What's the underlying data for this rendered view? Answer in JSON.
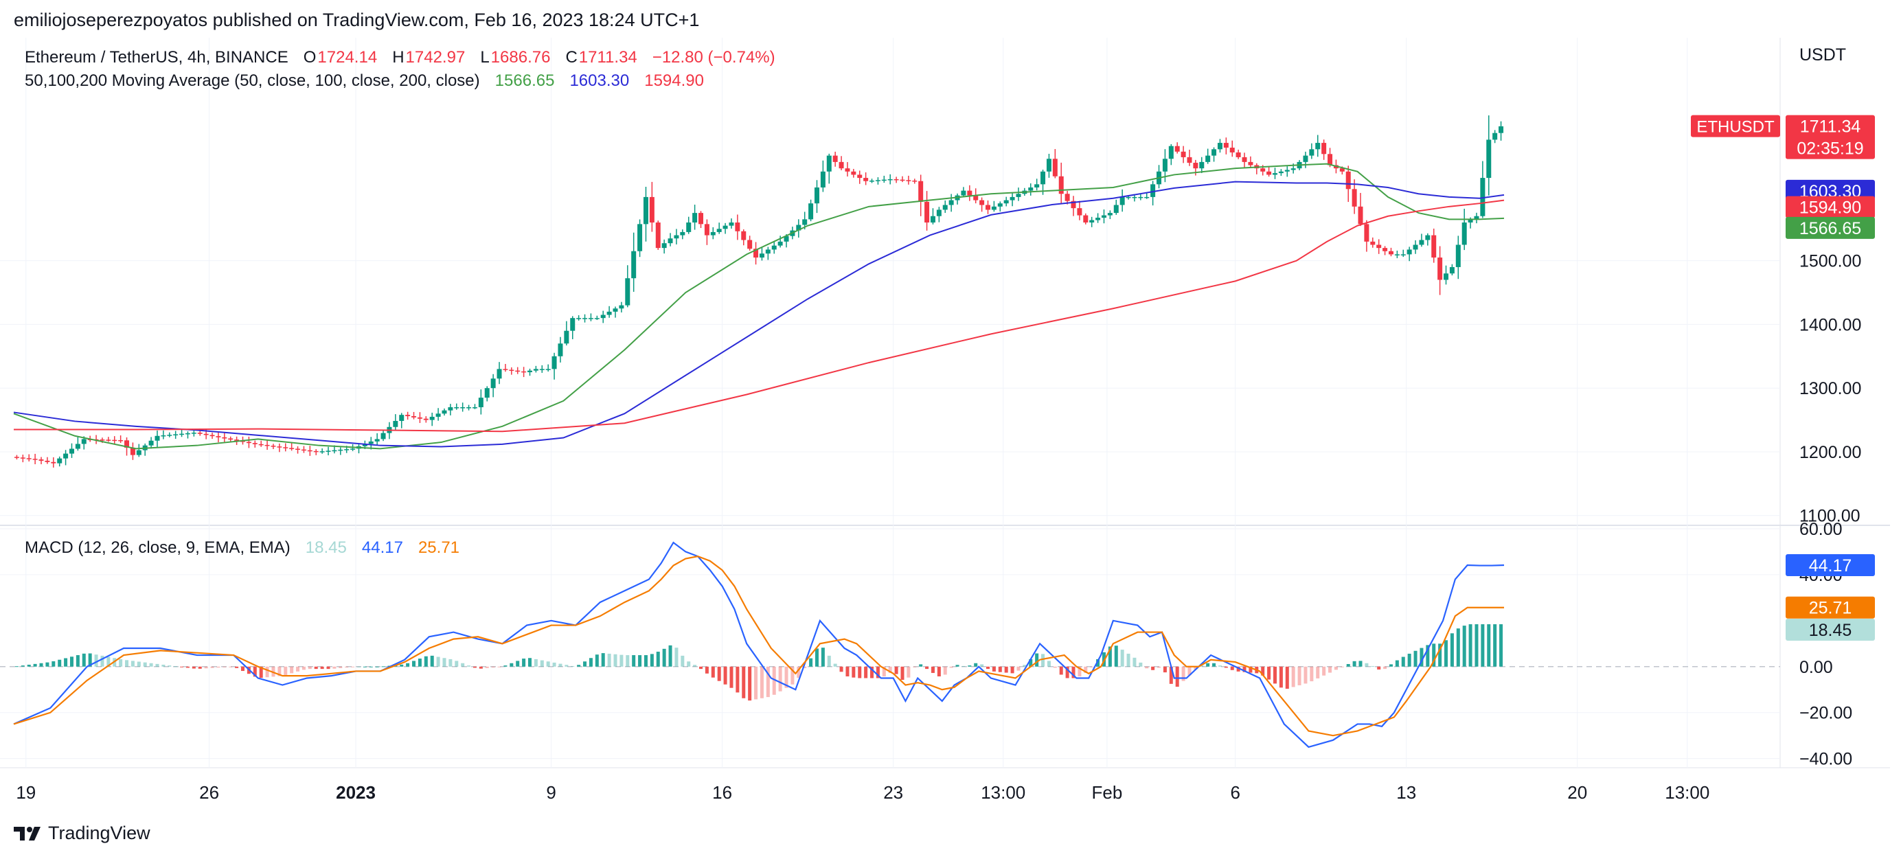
{
  "header": {
    "publisher": "emiliojoseperezpoyatos published on TradingView.com, Feb 16, 2023 18:24 UTC+1"
  },
  "watermark": {
    "label": "TradingView",
    "icon": "tradingview-logo-icon"
  },
  "colors": {
    "up": "#089981",
    "down": "#f23645",
    "ma50": "#43a047",
    "ma100": "#2b2bd6",
    "ma200": "#f23645",
    "macd": "#2962ff",
    "signal": "#f57c00",
    "hist_up": "#26a69a",
    "hist_down": "#ef5350"
  },
  "legend": {
    "symbol": "Ethereum / TetherUS, 4h, BINANCE",
    "o_label": "O",
    "o": "1724.14",
    "h_label": "H",
    "h": "1742.97",
    "l_label": "L",
    "l": "1686.76",
    "c_label": "C",
    "c": "1711.34",
    "change": "−12.80 (−0.74%)",
    "ma_title": "50,100,200 Moving Average (50, close, 100, close, 200, close)",
    "ma50": "1566.65",
    "ma100": "1603.30",
    "ma200": "1594.90",
    "macd_title": "MACD (12, 26, close, 9, EMA, EMA)",
    "hist": "18.45",
    "macd": "44.17",
    "signal": "25.71"
  },
  "chart_data": {
    "type": "line",
    "price_axis": {
      "label": "USDT",
      "ylim": [
        1090,
        1850
      ],
      "ticks": [
        "1100.00",
        "1200.00",
        "1300.00",
        "1400.00",
        "1500.00"
      ]
    },
    "macd_axis": {
      "ylim": [
        -44,
        60
      ],
      "ticks": [
        "60.00",
        "40.00",
        "0.00",
        "−20.00",
        "−40.00"
      ]
    },
    "x_axis": {
      "range": [
        0,
        244
      ],
      "ticks": [
        {
          "x": 2,
          "label": "19",
          "bold": false
        },
        {
          "x": 32,
          "label": "26",
          "bold": false
        },
        {
          "x": 56,
          "label": "2023",
          "bold": true
        },
        {
          "x": 88,
          "label": "9",
          "bold": false
        },
        {
          "x": 116,
          "label": "16",
          "bold": false
        },
        {
          "x": 144,
          "label": "23",
          "bold": false
        },
        {
          "x": 162,
          "label": "13:00",
          "bold": false
        },
        {
          "x": 179,
          "label": "Feb",
          "bold": false
        },
        {
          "x": 200,
          "label": "6",
          "bold": false
        },
        {
          "x": 228,
          "label": "13",
          "bold": false
        },
        {
          "x": 256,
          "label": "20",
          "bold": false
        },
        {
          "x": 274,
          "label": "13:00",
          "bold": false
        }
      ]
    },
    "price_series": {
      "name": "ETHUSDT",
      "x": [
        0,
        4,
        7,
        12,
        18,
        20,
        24,
        30,
        40,
        50,
        56,
        60,
        64,
        68,
        72,
        76,
        80,
        84,
        86,
        88,
        92,
        96,
        98,
        100,
        104,
        106,
        108,
        110,
        112,
        114,
        118,
        122,
        126,
        130,
        134,
        136,
        140,
        144,
        148,
        150,
        152,
        156,
        160,
        164,
        168,
        170,
        172,
        176,
        180,
        182,
        186,
        190,
        194,
        198,
        202,
        206,
        210,
        214,
        216,
        218,
        222,
        226,
        228,
        230,
        232,
        234,
        236,
        238,
        240,
        242,
        244
      ],
      "y": [
        1192,
        1188,
        1182,
        1220,
        1218,
        1195,
        1225,
        1230,
        1212,
        1200,
        1205,
        1220,
        1258,
        1250,
        1270,
        1270,
        1330,
        1325,
        1330,
        1330,
        1410,
        1410,
        1420,
        1430,
        1600,
        1520,
        1535,
        1545,
        1575,
        1540,
        1560,
        1505,
        1530,
        1565,
        1665,
        1645,
        1625,
        1628,
        1625,
        1560,
        1580,
        1610,
        1580,
        1600,
        1620,
        1660,
        1605,
        1560,
        1575,
        1600,
        1600,
        1680,
        1645,
        1685,
        1655,
        1635,
        1645,
        1685,
        1650,
        1640,
        1530,
        1510,
        1510,
        1525,
        1540,
        1470,
        1490,
        1560,
        1570,
        1690,
        1711
      ]
    },
    "last_price": {
      "label": "ETHUSDT",
      "value": "1711.34",
      "countdown": "02:35:19"
    },
    "moving_averages": [
      {
        "name": "MA 50",
        "value": "1566.65",
        "x": [
          0,
          10,
          20,
          30,
          40,
          50,
          60,
          70,
          80,
          90,
          100,
          110,
          120,
          130,
          140,
          150,
          160,
          170,
          180,
          190,
          200,
          210,
          215,
          220,
          225,
          230,
          235,
          240,
          244
        ],
        "y": [
          1260,
          1225,
          1205,
          1210,
          1220,
          1210,
          1205,
          1215,
          1240,
          1280,
          1360,
          1450,
          1510,
          1555,
          1585,
          1595,
          1605,
          1610,
          1615,
          1635,
          1645,
          1650,
          1652,
          1640,
          1600,
          1575,
          1565,
          1565,
          1566.65
        ]
      },
      {
        "name": "MA 100",
        "value": "1603.30",
        "x": [
          0,
          10,
          20,
          30,
          40,
          50,
          60,
          70,
          80,
          90,
          100,
          110,
          120,
          130,
          140,
          150,
          160,
          170,
          180,
          190,
          200,
          210,
          215,
          220,
          225,
          230,
          235,
          240,
          244
        ],
        "y": [
          1262,
          1248,
          1240,
          1234,
          1226,
          1218,
          1210,
          1208,
          1212,
          1222,
          1260,
          1320,
          1380,
          1440,
          1495,
          1540,
          1572,
          1588,
          1598,
          1614,
          1624,
          1622,
          1622,
          1620,
          1615,
          1605,
          1600,
          1598,
          1603.3
        ]
      },
      {
        "name": "MA 200",
        "value": "1594.90",
        "x": [
          0,
          20,
          40,
          60,
          80,
          100,
          120,
          140,
          160,
          180,
          200,
          210,
          215,
          220,
          225,
          230,
          235,
          240,
          244
        ],
        "y": [
          1235,
          1235,
          1236,
          1234,
          1232,
          1245,
          1290,
          1340,
          1385,
          1425,
          1468,
          1500,
          1530,
          1555,
          1570,
          1578,
          1585,
          1590,
          1594.9
        ]
      }
    ],
    "macd": {
      "x": [
        0,
        6,
        12,
        18,
        24,
        30,
        36,
        40,
        44,
        48,
        52,
        56,
        60,
        64,
        68,
        72,
        76,
        80,
        84,
        88,
        92,
        96,
        100,
        104,
        106,
        108,
        110,
        112,
        114,
        116,
        118,
        120,
        124,
        128,
        132,
        136,
        138,
        140,
        142,
        144,
        146,
        148,
        150,
        152,
        154,
        156,
        158,
        160,
        164,
        168,
        172,
        174,
        176,
        178,
        180,
        184,
        186,
        188,
        190,
        192,
        194,
        196,
        200,
        204,
        208,
        212,
        216,
        220,
        222,
        224,
        226,
        228,
        232,
        234,
        236,
        238,
        240,
        242,
        244
      ],
      "macd_line": [
        -25,
        -18,
        0,
        8,
        8,
        5,
        5,
        -5,
        -8,
        -5,
        -4,
        -2,
        -2,
        3,
        13,
        15,
        12,
        10,
        18,
        20,
        18,
        28,
        33,
        38,
        45,
        54,
        50,
        48,
        42,
        35,
        25,
        10,
        -5,
        -10,
        20,
        8,
        5,
        0,
        -5,
        -5,
        -15,
        -5,
        -10,
        -15,
        -8,
        -5,
        0,
        -5,
        -8,
        10,
        0,
        -5,
        -5,
        5,
        20,
        18,
        13,
        15,
        -5,
        -5,
        0,
        5,
        0,
        -5,
        -25,
        -35,
        -32,
        -25,
        -25,
        -26,
        -20,
        -10,
        10,
        20,
        38,
        44.17,
        44,
        44,
        44.17
      ],
      "signal_line": [
        -25,
        -20,
        -6,
        5,
        7,
        6,
        5,
        0,
        -4,
        -4,
        -3,
        -2,
        -2,
        2,
        8,
        12,
        13,
        10,
        14,
        18,
        18,
        22,
        28,
        33,
        38,
        44,
        47,
        48,
        46,
        42,
        35,
        25,
        8,
        -3,
        10,
        12,
        10,
        5,
        0,
        -3,
        -8,
        -7,
        -8,
        -10,
        -9,
        -5,
        -2,
        -3,
        -5,
        3,
        5,
        0,
        -3,
        0,
        10,
        15,
        15,
        15,
        5,
        0,
        0,
        3,
        2,
        -2,
        -15,
        -28,
        -30,
        -28,
        -26,
        -24,
        -22,
        -15,
        0,
        10,
        22,
        25.71,
        25.71,
        25.71,
        25.71
      ],
      "histogram": [
        0,
        2,
        6,
        3,
        1,
        -1,
        0,
        -5,
        -4,
        -1,
        -1,
        0,
        0,
        1,
        5,
        3,
        -1,
        0,
        4,
        2,
        0,
        6,
        5,
        5,
        7,
        10,
        3,
        0,
        -4,
        -7,
        -10,
        -15,
        -13,
        -7,
        10,
        -4,
        -5,
        -5,
        -5,
        -2,
        -7,
        2,
        -2,
        -5,
        1,
        0,
        2,
        -2,
        -3,
        7,
        -5,
        -5,
        -2,
        5,
        10,
        3,
        -2,
        0,
        -10,
        -5,
        0,
        2,
        -2,
        -3,
        -10,
        -7,
        -2,
        3,
        1,
        -2,
        2,
        5,
        10,
        10,
        16,
        18.45,
        18.45,
        18.45,
        18.45
      ]
    }
  }
}
